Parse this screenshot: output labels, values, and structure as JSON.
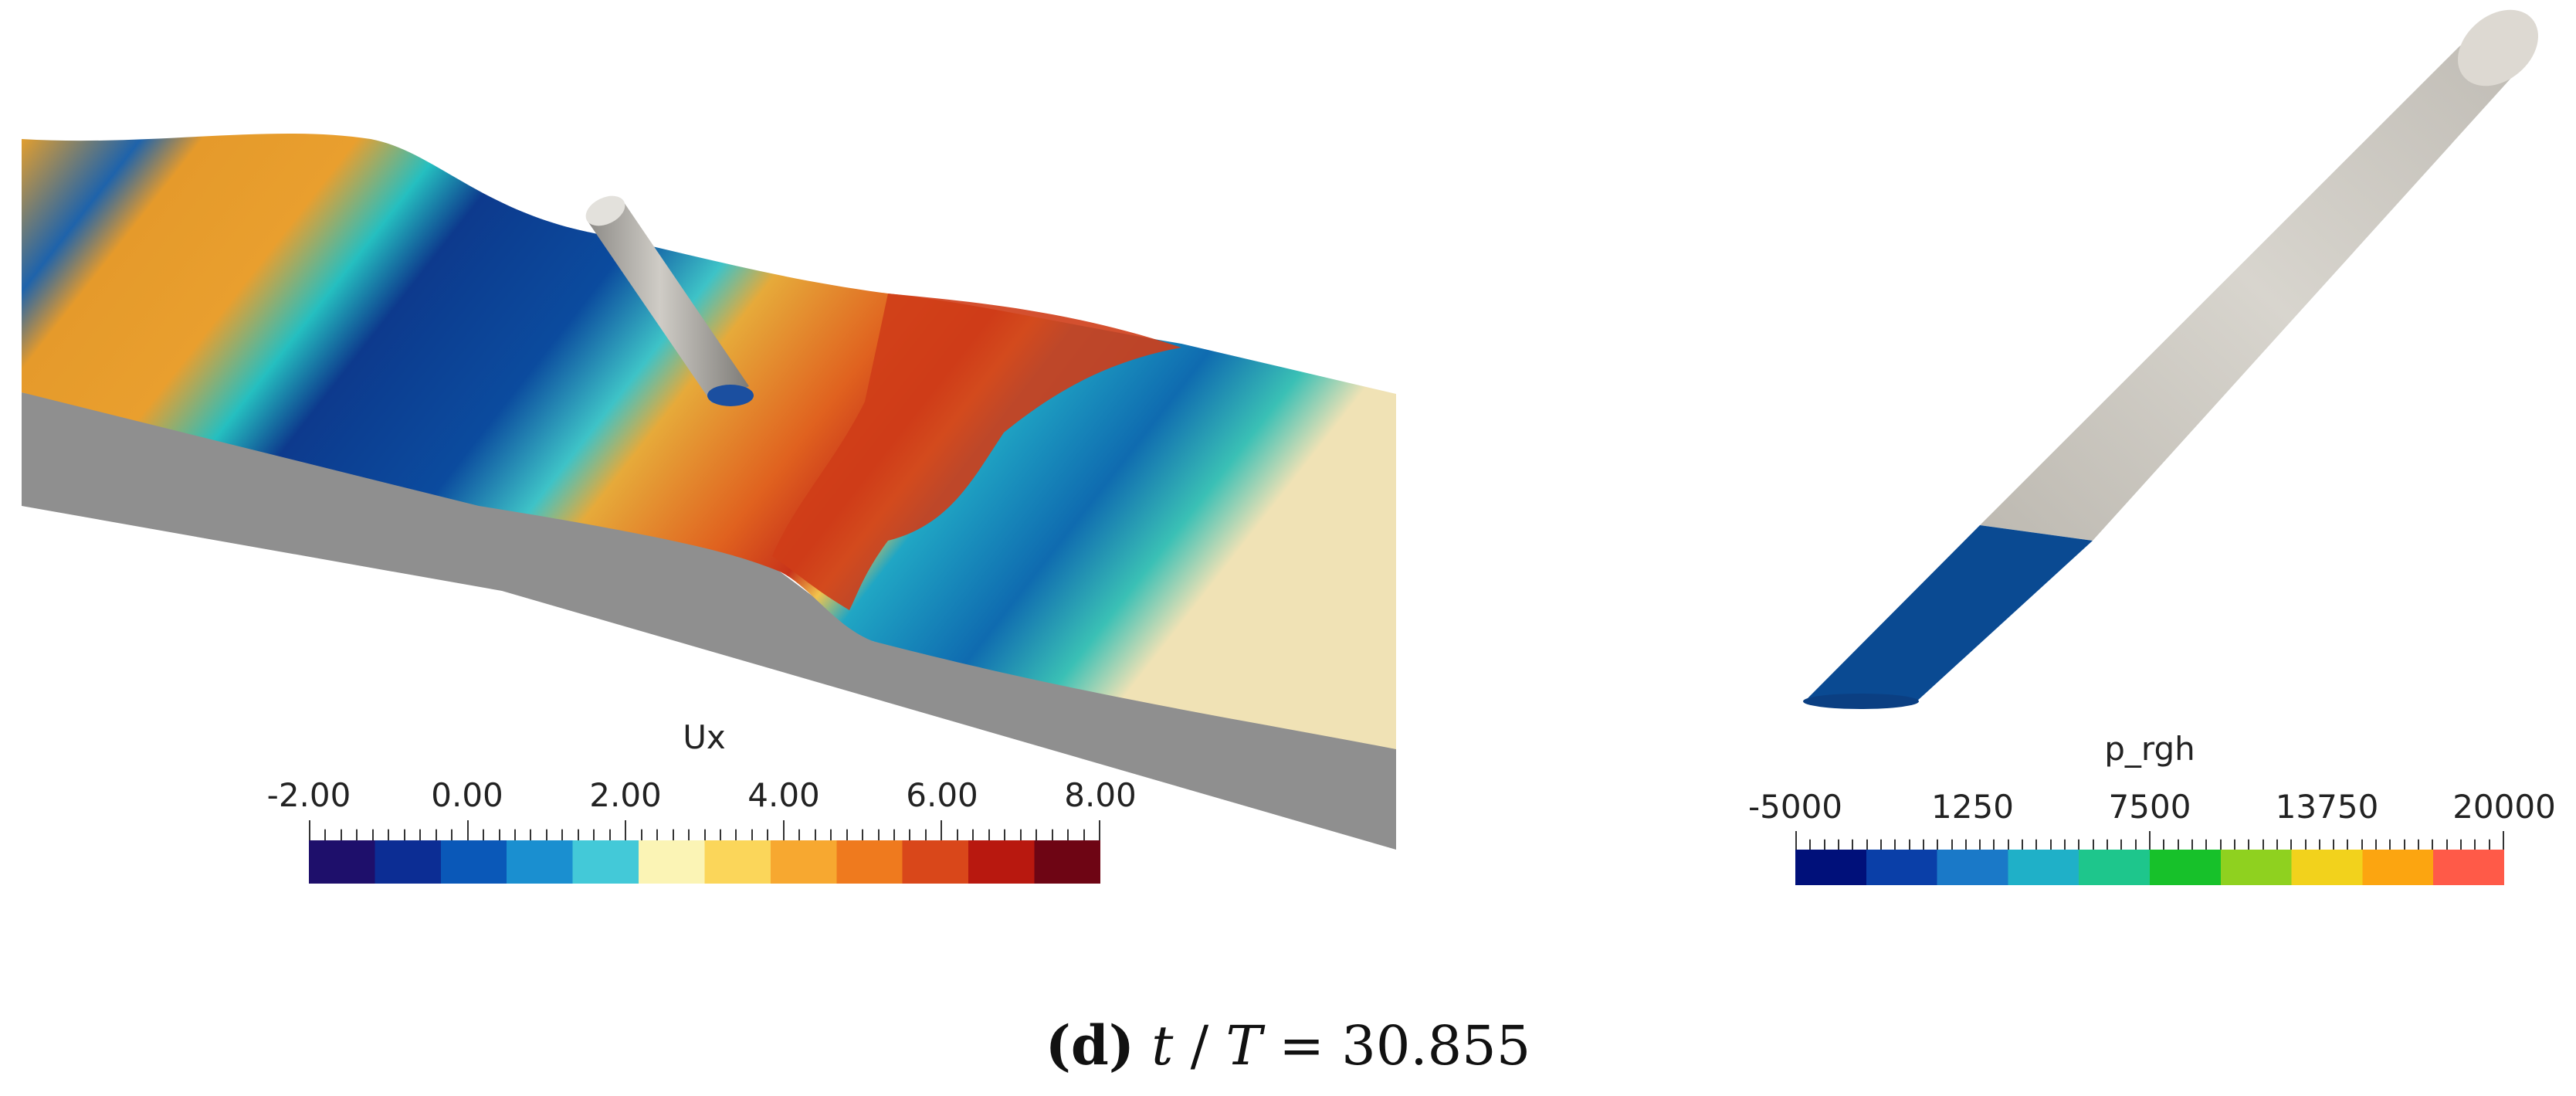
{
  "colorbars": {
    "ux": {
      "title": "Ux",
      "ticks": [
        "-2.00",
        "0.00",
        "2.00",
        "4.00",
        "6.00",
        "8.00"
      ],
      "range": [
        -2,
        8
      ],
      "colors": [
        "#1e0f6b",
        "#0c2d94",
        "#0a58b8",
        "#1a8fd0",
        "#43c9d8",
        "#fbf4b5",
        "#fbd65a",
        "#f7a830",
        "#ef7a1e",
        "#d9471a",
        "#b8180f",
        "#6e0514"
      ]
    },
    "prgh": {
      "title": "p_rgh",
      "ticks": [
        "-5000",
        "1250",
        "7500",
        "13750",
        "20000"
      ],
      "range": [
        -5000,
        20000
      ],
      "colors": [
        "#00107a",
        "#0a3fa8",
        "#1a79c8",
        "#1fb0c8",
        "#1ec68c",
        "#17c12a",
        "#8fd11f",
        "#f2d21c",
        "#fca510",
        "#ff5a48"
      ]
    }
  },
  "caption": {
    "label": "(d)",
    "variable": "t",
    "slash": " / ",
    "period": "T",
    "equals": " = ",
    "value": "30.855"
  }
}
